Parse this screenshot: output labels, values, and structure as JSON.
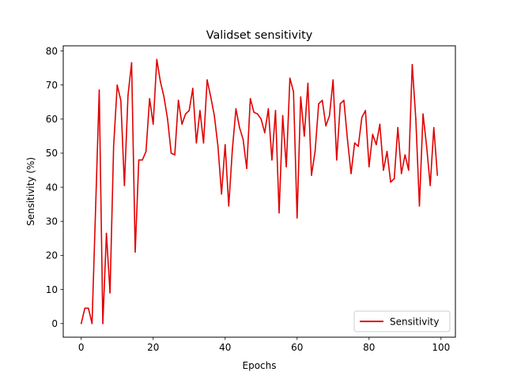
{
  "chart_data": {
    "type": "line",
    "title": "Validset sensitivity",
    "xlabel": "Epochs",
    "ylabel": "Sensitivity (%)",
    "xlim": [
      -5,
      104
    ],
    "ylim": [
      -4,
      81.5
    ],
    "xticks": [
      0,
      20,
      40,
      60,
      80,
      100
    ],
    "yticks": [
      0,
      10,
      20,
      30,
      40,
      50,
      60,
      70,
      80
    ],
    "grid": false,
    "legend_position": "lower-right",
    "series": [
      {
        "name": "Sensitivity",
        "color": "#e00000",
        "x": [
          0,
          1,
          2,
          3,
          4,
          5,
          6,
          7,
          8,
          9,
          10,
          11,
          12,
          13,
          14,
          15,
          16,
          17,
          18,
          19,
          20,
          21,
          22,
          23,
          24,
          25,
          26,
          27,
          28,
          29,
          30,
          31,
          32,
          33,
          34,
          35,
          36,
          37,
          38,
          39,
          40,
          41,
          42,
          43,
          44,
          45,
          46,
          47,
          48,
          49,
          50,
          51,
          52,
          53,
          54,
          55,
          56,
          57,
          58,
          59,
          60,
          61,
          62,
          63,
          64,
          65,
          66,
          67,
          68,
          69,
          70,
          71,
          72,
          73,
          74,
          75,
          76,
          77,
          78,
          79,
          80,
          81,
          82,
          83,
          84,
          85,
          86,
          87,
          88,
          89,
          90,
          91,
          92,
          93,
          94,
          95,
          96,
          97,
          98,
          99
        ],
        "y": [
          0,
          4.5,
          4.5,
          0,
          34,
          68.5,
          0,
          26.5,
          9,
          52,
          70,
          65.5,
          40.5,
          67,
          76.5,
          21,
          48,
          48,
          50.5,
          66,
          58.5,
          77.5,
          71,
          66.5,
          60,
          50,
          49.5,
          65.5,
          58.5,
          61.5,
          62.5,
          69,
          53,
          62.5,
          53,
          71.5,
          66.5,
          61,
          52,
          38,
          52.5,
          34.5,
          51,
          63,
          57.5,
          54,
          45.5,
          66,
          62,
          61.5,
          60,
          56,
          63,
          48,
          62.5,
          32.5,
          61,
          46,
          72,
          68,
          31,
          66.5,
          55,
          70.5,
          43.5,
          50.5,
          64.5,
          65.5,
          58,
          61,
          71.5,
          48,
          64.5,
          65.5,
          54,
          44,
          53,
          52,
          60.5,
          62.5,
          46,
          55.5,
          52.5,
          58.5,
          45,
          50.5,
          41.5,
          42.5,
          57.5,
          44,
          49.5,
          45,
          76,
          60,
          34.5,
          61.5,
          52,
          40.5,
          57.5,
          43.5
        ]
      }
    ]
  }
}
